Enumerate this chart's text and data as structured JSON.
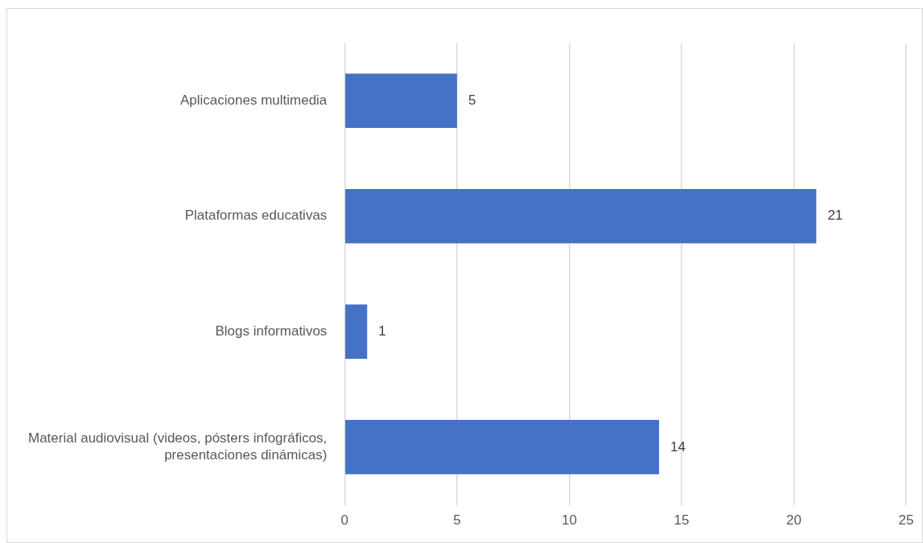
{
  "chart_data": {
    "type": "bar",
    "orientation": "horizontal",
    "categories": [
      "Aplicaciones multimedia",
      "Plataformas educativas",
      "Blogs informativos",
      "Material audiovisual (videos, pósters infográficos, presentaciones dinámicas)"
    ],
    "values": [
      5,
      21,
      1,
      14
    ],
    "color": "#4472c4",
    "xlim": [
      0,
      25
    ],
    "xticks": [
      0,
      5,
      10,
      15,
      20,
      25
    ],
    "grid": "x",
    "data_labels": true,
    "legend": false
  }
}
